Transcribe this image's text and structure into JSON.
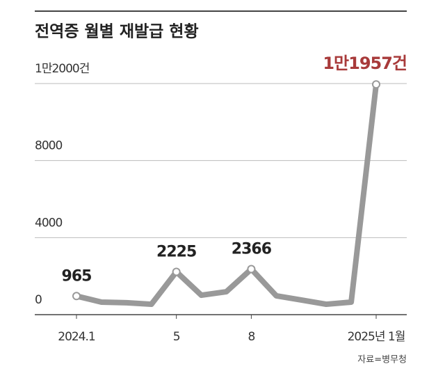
{
  "chart_data": {
    "type": "line",
    "title": "전역증 월별 재발급 현황",
    "source": "자료=병무청",
    "categories": [
      "2024.1",
      null,
      null,
      null,
      "5",
      null,
      null,
      "8",
      null,
      null,
      null,
      null,
      "2025년 1월"
    ],
    "series": [
      {
        "name": "재발급",
        "color": "#999999",
        "values": [
          965,
          650,
          620,
          540,
          2225,
          1010,
          1190,
          2366,
          980,
          760,
          540,
          650,
          11957
        ],
        "value_labels": [
          "965",
          null,
          null,
          null,
          "2225",
          null,
          null,
          "2366",
          null,
          null,
          null,
          null,
          "1만1957건"
        ]
      }
    ],
    "highlight_color": "#a83a3a",
    "ylim": [
      0,
      12000
    ],
    "yticks": [
      0,
      4000,
      8000,
      {
        "value": 12000,
        "label": "1만2000건"
      }
    ],
    "grid": true
  }
}
